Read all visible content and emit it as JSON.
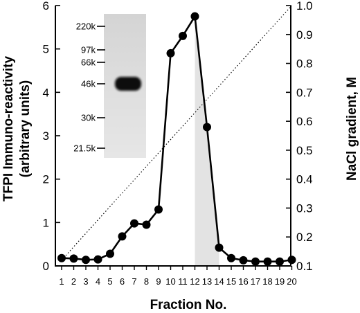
{
  "chart_data": {
    "type": "line",
    "xlabel": "Fraction No.",
    "ylabel_left_line1": "TFPI Immuno-reactivity",
    "ylabel_left_line2": "(arbitrary units)",
    "ylabel_right": "NaCl gradient, M",
    "ylim_left": [
      0,
      6
    ],
    "ylim_right": [
      0.1,
      1.0
    ],
    "left_ticks": [
      "0",
      "1",
      "2",
      "3",
      "4",
      "5",
      "6"
    ],
    "right_ticks": [
      "0.1",
      "0.2",
      "0.3",
      "0.4",
      "0.5",
      "0.6",
      "0.7",
      "0.8",
      "0.9",
      "1.0"
    ],
    "categories": [
      "1",
      "2",
      "3",
      "4",
      "5",
      "6",
      "7",
      "8",
      "9",
      "10",
      "11",
      "12",
      "13",
      "14",
      "15",
      "16",
      "17",
      "18",
      "19",
      "20"
    ],
    "series": [
      {
        "style": "solid-line-filled-circles",
        "x": [
          1,
          2,
          3,
          4,
          5,
          6,
          7,
          8,
          9,
          10,
          11,
          12,
          13,
          14,
          15,
          16,
          17,
          18,
          19,
          20
        ],
        "values": [
          0.18,
          0.17,
          0.14,
          0.15,
          0.28,
          0.68,
          0.98,
          0.95,
          1.3,
          4.9,
          5.3,
          5.75,
          3.2,
          0.42,
          0.18,
          0.13,
          0.1,
          0.1,
          0.1,
          0.14
        ]
      },
      {
        "style": "dotted-line",
        "axis": "right",
        "x": [
          1,
          20
        ],
        "values": [
          0.12,
          1.0
        ]
      }
    ],
    "shaded_region": {
      "x": [
        12,
        13,
        14
      ],
      "color": "#e3e3e3"
    },
    "inset_blot": {
      "markers": [
        "220k",
        "97k",
        "66k",
        "46k",
        "30k",
        "21.5k"
      ],
      "marker_kda": [
        220,
        97,
        66,
        46,
        30,
        21.5
      ],
      "band_kda": 46
    }
  }
}
